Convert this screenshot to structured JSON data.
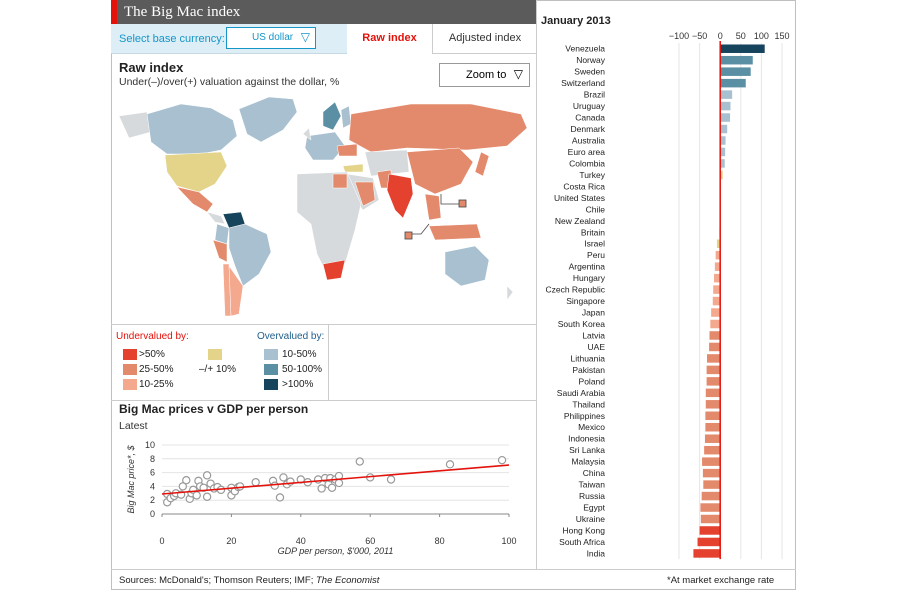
{
  "header": {
    "title": "The Big Mac index"
  },
  "controls": {
    "base_label": "Select base currency:",
    "base_value": "US dollar",
    "tab_raw": "Raw index",
    "tab_adjusted": "Adjusted index"
  },
  "map": {
    "title": "Raw index",
    "subtitle": "Under(–)/over(+) valuation against the dollar, %",
    "zoom_label": "Zoom to"
  },
  "legend": {
    "under_heading": "Undervalued by:",
    "over_heading": "Overvalued by:",
    "under": [
      {
        "label": ">50%",
        "color": "#e4412f"
      },
      {
        "label": "25-50%",
        "color": "#e48a6c"
      },
      {
        "label": "10-25%",
        "color": "#f4a88e"
      }
    ],
    "neutral": {
      "label": "–/+ 10%",
      "color": "#e3d48a"
    },
    "over": [
      {
        "label": "10-50%",
        "color": "#a8c0d0"
      },
      {
        "label": "50-100%",
        "color": "#5b8fa4"
      },
      {
        "label": ">100%",
        "color": "#17445d"
      }
    ],
    "under_heading_color": "#e3120b",
    "over_heading_color": "#1f5f8b"
  },
  "scatter": {
    "title": "Big Mac prices v GDP per person",
    "subtitle": "Latest"
  },
  "footer": {
    "sources_prefix": "Sources: McDonald's; Thomson Reuters; IMF; ",
    "sources_italic": "The Economist",
    "note": "*At market exchange rate"
  },
  "chart_data": [
    {
      "type": "bar",
      "orientation": "horizontal",
      "title": "January 2013",
      "xlim": [
        -100,
        150
      ],
      "ticks": [
        -100,
        -50,
        0,
        50,
        100,
        150
      ],
      "categories": [
        "Venezuela",
        "Norway",
        "Sweden",
        "Switzerland",
        "Brazil",
        "Uruguay",
        "Canada",
        "Denmark",
        "Australia",
        "Euro area",
        "Colombia",
        "Turkey",
        "Costa Rica",
        "United States",
        "Chile",
        "New Zealand",
        "Britain",
        "Israel",
        "Peru",
        "Argentina",
        "Hungary",
        "Czech Republic",
        "Singapore",
        "Japan",
        "South Korea",
        "Latvia",
        "UAE",
        "Lithuania",
        "Pakistan",
        "Poland",
        "Saudi Arabia",
        "Thailand",
        "Philippines",
        "Mexico",
        "Indonesia",
        "Sri Lanka",
        "Malaysia",
        "China",
        "Taiwan",
        "Russia",
        "Egypt",
        "Ukraine",
        "Hong Kong",
        "South Africa",
        "India"
      ],
      "values": [
        108,
        79,
        74,
        62,
        29,
        25,
        24,
        17,
        13,
        12,
        11,
        6,
        1,
        0,
        0,
        0,
        -2,
        -8,
        -11,
        -13,
        -15,
        -17,
        -18,
        -22,
        -24,
        -26,
        -27,
        -32,
        -33,
        -33,
        -35,
        -35,
        -36,
        -36,
        -37,
        -39,
        -44,
        -42,
        -41,
        -45,
        -48,
        -47,
        -50,
        -55,
        -65
      ],
      "colors": {
        "over_10_50": "#a8c0d0",
        "over_50_100": "#5b8fa4",
        "over_100": "#17445d",
        "neutral": "#e3d48a",
        "under_10_25": "#f4a88e",
        "under_25_50": "#e48a6c",
        "under_50": "#e4412f"
      },
      "zero_line_color": "#e3120b"
    },
    {
      "type": "scatter",
      "title": "Big Mac prices v GDP per person",
      "xlabel": "GDP per person, $'000, 2011",
      "ylabel": "Big Mac price*, $",
      "xlim": [
        0,
        100
      ],
      "ylim": [
        0,
        10
      ],
      "xticks": [
        0,
        20,
        40,
        60,
        80,
        100
      ],
      "yticks": [
        0,
        2,
        4,
        6,
        8,
        10
      ],
      "points": [
        [
          1.5,
          1.7
        ],
        [
          1.5,
          2.9
        ],
        [
          2.5,
          2.3
        ],
        [
          3.5,
          2.6
        ],
        [
          4,
          3.0
        ],
        [
          5.5,
          2.8
        ],
        [
          6,
          4.0
        ],
        [
          7,
          4.9
        ],
        [
          8,
          2.2
        ],
        [
          8.5,
          3.0
        ],
        [
          9,
          3.5
        ],
        [
          10,
          2.7
        ],
        [
          10.5,
          4.8
        ],
        [
          11,
          4.0
        ],
        [
          12,
          3.8
        ],
        [
          13,
          5.6
        ],
        [
          13,
          2.5
        ],
        [
          14,
          4.4
        ],
        [
          15,
          3.7
        ],
        [
          16,
          3.9
        ],
        [
          17,
          3.5
        ],
        [
          20,
          2.7
        ],
        [
          20,
          3.8
        ],
        [
          21,
          3.3
        ],
        [
          22,
          3.9
        ],
        [
          22.5,
          4.0
        ],
        [
          27,
          4.6
        ],
        [
          32,
          4.8
        ],
        [
          32.5,
          4.1
        ],
        [
          34,
          2.4
        ],
        [
          35,
          5.3
        ],
        [
          36,
          4.3
        ],
        [
          37,
          4.7
        ],
        [
          40,
          5.0
        ],
        [
          42,
          4.6
        ],
        [
          45,
          5.0
        ],
        [
          46,
          3.7
        ],
        [
          47,
          5.2
        ],
        [
          48,
          4.3
        ],
        [
          48.5,
          5.2
        ],
        [
          49,
          3.8
        ],
        [
          50,
          5.0
        ],
        [
          51,
          4.5
        ],
        [
          51,
          5.5
        ],
        [
          57,
          7.6
        ],
        [
          60,
          5.3
        ],
        [
          66,
          5.0
        ],
        [
          83,
          7.2
        ],
        [
          98,
          7.8
        ]
      ],
      "trendline": [
        [
          0,
          2.9
        ],
        [
          100,
          7.1
        ]
      ],
      "point_color": "#999999",
      "trend_color": "#e3120b"
    }
  ]
}
